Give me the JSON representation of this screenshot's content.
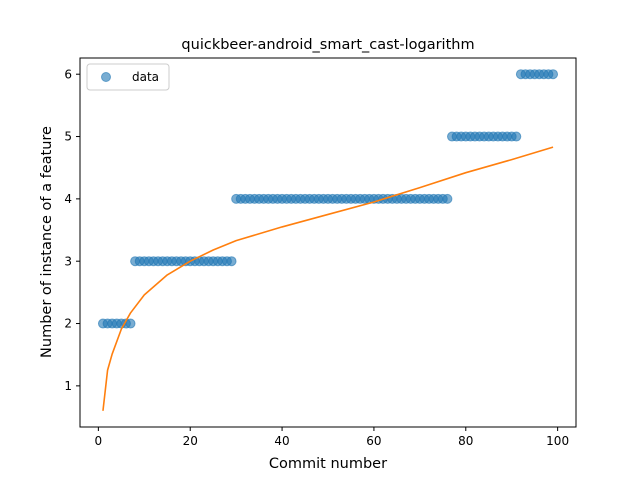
{
  "chart_data": {
    "type": "scatter",
    "title": "quickbeer-android_smart_cast-logarithm",
    "xlabel": "Commit number",
    "ylabel": "Number of instance of a feature",
    "xlim": [
      -4,
      104
    ],
    "ylim": [
      0.34,
      6.26
    ],
    "xticks": [
      0,
      20,
      40,
      60,
      80,
      100
    ],
    "yticks": [
      1,
      2,
      3,
      4,
      5,
      6
    ],
    "grid": false,
    "legend": {
      "placement": "upper-left",
      "entries": [
        "data"
      ]
    },
    "series": [
      {
        "name": "data",
        "kind": "scatter",
        "color": "#1f77b4",
        "x": [
          1,
          2,
          3,
          4,
          5,
          6,
          7,
          8,
          9,
          10,
          11,
          12,
          13,
          14,
          15,
          16,
          17,
          18,
          19,
          20,
          21,
          22,
          23,
          24,
          25,
          26,
          27,
          28,
          29,
          30,
          31,
          32,
          33,
          34,
          35,
          36,
          37,
          38,
          39,
          40,
          41,
          42,
          43,
          44,
          45,
          46,
          47,
          48,
          49,
          50,
          51,
          52,
          53,
          54,
          55,
          56,
          57,
          58,
          59,
          60,
          61,
          62,
          63,
          64,
          65,
          66,
          67,
          68,
          69,
          70,
          71,
          72,
          73,
          74,
          75,
          76,
          77,
          78,
          79,
          80,
          81,
          82,
          83,
          84,
          85,
          86,
          87,
          88,
          89,
          90,
          91,
          92,
          93,
          94,
          95,
          96,
          97,
          98,
          99
        ],
        "y": [
          2,
          2,
          2,
          2,
          2,
          2,
          2,
          3,
          3,
          3,
          3,
          3,
          3,
          3,
          3,
          3,
          3,
          3,
          3,
          3,
          3,
          3,
          3,
          3,
          3,
          3,
          3,
          3,
          3,
          4,
          4,
          4,
          4,
          4,
          4,
          4,
          4,
          4,
          4,
          4,
          4,
          4,
          4,
          4,
          4,
          4,
          4,
          4,
          4,
          4,
          4,
          4,
          4,
          4,
          4,
          4,
          4,
          4,
          4,
          4,
          4,
          4,
          4,
          4,
          4,
          4,
          4,
          4,
          4,
          4,
          4,
          4,
          4,
          4,
          4,
          4,
          5,
          5,
          5,
          5,
          5,
          5,
          5,
          5,
          5,
          5,
          5,
          5,
          5,
          5,
          5,
          6,
          6,
          6,
          6,
          6,
          6,
          6,
          6
        ]
      },
      {
        "kind": "line",
        "color": "#ff7f0e",
        "x": [
          1,
          2,
          3,
          5,
          7,
          10,
          15,
          20,
          25,
          30,
          40,
          50,
          60,
          70,
          80,
          90,
          99
        ],
        "y": [
          0.6,
          1.25,
          1.51,
          1.91,
          2.17,
          2.46,
          2.78,
          3.0,
          3.18,
          3.33,
          3.55,
          3.75,
          3.95,
          4.18,
          4.42,
          4.63,
          4.83
        ]
      }
    ]
  }
}
